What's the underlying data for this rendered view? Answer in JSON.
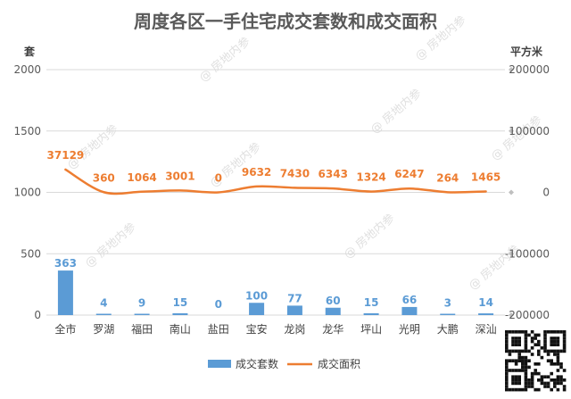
{
  "chart_data": {
    "type": "bar+line",
    "title": "周度各区一手住宅成交套数和成交面积",
    "left_axis": {
      "unit": "套",
      "ticks": [
        "2000",
        "1500",
        "1000",
        "500",
        "0"
      ],
      "range": [
        0,
        2000
      ]
    },
    "right_axis": {
      "unit": "平方米",
      "ticks": [
        "200000",
        "100000",
        "0",
        "-100000",
        "-200000"
      ],
      "range": [
        -200000,
        200000
      ]
    },
    "categories": [
      "全市",
      "罗湖",
      "福田",
      "南山",
      "盐田",
      "宝安",
      "龙岗",
      "龙华",
      "坪山",
      "光明",
      "大鹏",
      "深汕"
    ],
    "series": [
      {
        "name": "成交套数",
        "type": "bar",
        "axis": "left",
        "color": "#5b9bd5",
        "values": [
          363,
          4,
          9,
          15,
          0,
          100,
          77,
          60,
          15,
          66,
          3,
          14
        ]
      },
      {
        "name": "成交面积",
        "type": "line",
        "axis": "right",
        "color": "#ed7d31",
        "values": [
          37129,
          360,
          1064,
          3001,
          0,
          9632,
          7430,
          6343,
          1324,
          6247,
          264,
          1465
        ]
      }
    ],
    "grid": true,
    "legend": "bottom"
  },
  "watermark": "@ 房地内参",
  "qr_code": "qr-code"
}
